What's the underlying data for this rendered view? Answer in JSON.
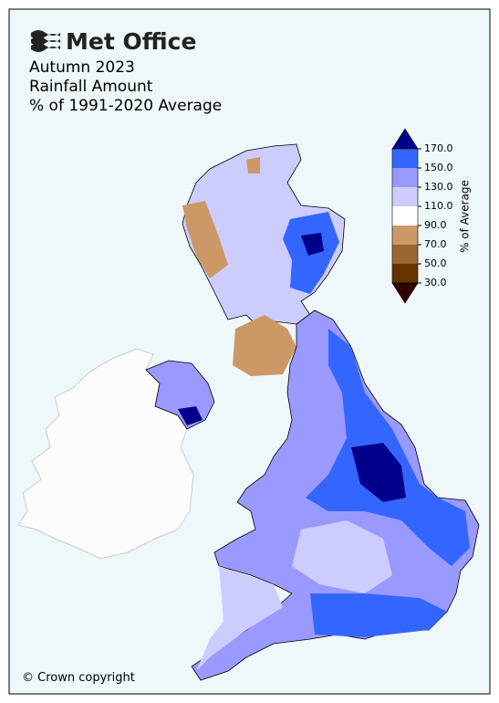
{
  "header": {
    "logo": "Met Office",
    "title": [
      "Autumn 2023",
      "Rainfall Amount",
      "% of 1991-2020 Average"
    ]
  },
  "colorbar": {
    "label": "% of Average",
    "ticks": [
      {
        "value": 170,
        "label": "170.0"
      },
      {
        "value": 150,
        "label": "150.0"
      },
      {
        "value": 130,
        "label": "130.0"
      },
      {
        "value": 110,
        "label": "110.0"
      },
      {
        "value": 90,
        "label": "90.0"
      },
      {
        "value": 70,
        "label": "70.0"
      },
      {
        "value": 50,
        "label": "50.0"
      },
      {
        "value": 30,
        "label": "30.0"
      }
    ],
    "colors": [
      "#00008b",
      "#3366ff",
      "#9999ff",
      "#ccccff",
      "#ffffff",
      "#cc9966",
      "#996633",
      "#663300",
      "#330000"
    ]
  },
  "footer": {
    "copyright": "© Crown copyright"
  }
}
